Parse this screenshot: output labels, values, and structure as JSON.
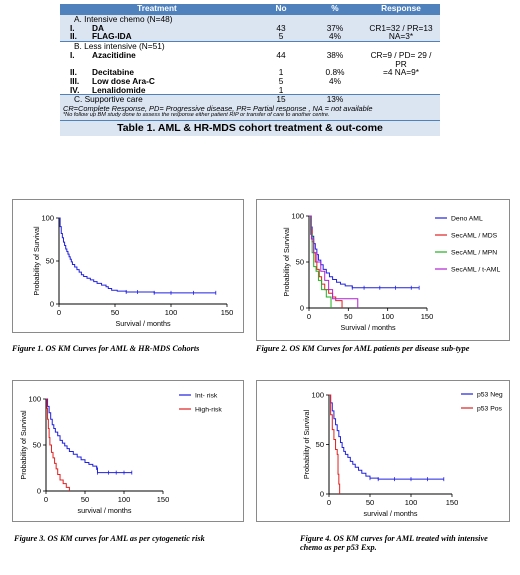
{
  "table": {
    "headers": [
      "Treatment",
      "No",
      "%",
      "Response"
    ],
    "intensive": {
      "section_label": "A.  Intensive chemo (N=48)",
      "rows": [
        {
          "roman": "I.",
          "name": "DA",
          "no": "43",
          "pct": "37%"
        },
        {
          "roman": "II.",
          "name": "FLAG-IDA",
          "no": "5",
          "pct": "4%"
        }
      ],
      "response_1": "CR1=32 / PR=13",
      "response_2": "NA=3*"
    },
    "less_intensive": {
      "section_label": "B.  Less intensive (N=51)",
      "rows": [
        {
          "roman": "I.",
          "name": "Azacitidine",
          "no": "44",
          "pct": "38%"
        },
        {
          "roman": "II.",
          "name": "Decitabine",
          "no": "1",
          "pct": "0.8%"
        },
        {
          "roman": "III.",
          "name": "Low dose Ara-C",
          "no": "5",
          "pct": "4%"
        },
        {
          "roman": "IV.",
          "name": "Lenalidomide",
          "no": "1",
          "pct": ""
        }
      ],
      "response_1": "CR=9 / PD= 29 / PR",
      "response_2": "=4 NA=9*"
    },
    "supportive": {
      "label": "C.  Supportive care",
      "no": "15",
      "pct": "13%"
    },
    "footnote_1": "CR=Complete Response, PD= Progressive disease, PR= Partial response  , NA = not available",
    "footnote_2": "*No follow up BM study done to assess  the response either patient RIP or transfer of care to another centre.",
    "caption": "Table 1. AML & HR-MDS cohort treatment & out-come"
  },
  "colors": {
    "header": "#4f81bd",
    "band": "#dbe5f1",
    "blue": "#2020e0",
    "red": "#e02020",
    "green": "#20b020",
    "purple": "#b020d0"
  },
  "figures": [
    {
      "caption": "Figure 1.  OS KM Curves for AML & HR-MDS Cohorts",
      "chart_data": {
        "type": "line",
        "ylabel": "Probability of Survival",
        "xlabel": "Survival / months",
        "x_ticks": [
          0,
          50,
          100,
          150
        ],
        "y_ticks": [
          0,
          50,
          100
        ],
        "xlim": [
          0,
          150
        ],
        "ylim": [
          0,
          100
        ],
        "series": [
          {
            "color": "#2020e0",
            "points": [
              [
                0,
                100
              ],
              [
                1,
                90
              ],
              [
                2,
                82
              ],
              [
                3,
                77
              ],
              [
                4,
                72
              ],
              [
                5,
                68
              ],
              [
                6,
                64
              ],
              [
                7,
                61
              ],
              [
                8,
                58
              ],
              [
                9,
                55
              ],
              [
                10,
                52
              ],
              [
                11,
                49
              ],
              [
                12,
                46
              ],
              [
                14,
                43
              ],
              [
                16,
                40
              ],
              [
                18,
                37
              ],
              [
                20,
                34
              ],
              [
                22,
                32
              ],
              [
                25,
                30
              ],
              [
                28,
                28
              ],
              [
                31,
                26
              ],
              [
                34,
                24
              ],
              [
                38,
                22
              ],
              [
                42,
                20
              ],
              [
                44,
                18
              ],
              [
                47,
                16
              ],
              [
                52,
                15
              ],
              [
                60,
                14
              ],
              [
                70,
                14
              ],
              [
                85,
                13
              ],
              [
                100,
                13
              ],
              [
                120,
                13
              ],
              [
                140,
                13
              ]
            ]
          }
        ]
      }
    },
    {
      "caption": "Figure 2. OS KM Curves for AML patients per disease sub-type",
      "chart_data": {
        "type": "line",
        "ylabel": "Probability of Survival",
        "xlabel": "Survival / months",
        "x_ticks": [
          0,
          50,
          100,
          150
        ],
        "y_ticks": [
          0,
          50,
          100
        ],
        "xlim": [
          0,
          150
        ],
        "ylim": [
          0,
          100
        ],
        "legend": "right",
        "series": [
          {
            "name": "Deno AML",
            "color": "#2020e0",
            "points": [
              [
                0,
                100
              ],
              [
                2,
                88
              ],
              [
                4,
                78
              ],
              [
                6,
                70
              ],
              [
                8,
                64
              ],
              [
                10,
                58
              ],
              [
                12,
                52
              ],
              [
                15,
                47
              ],
              [
                18,
                42
              ],
              [
                22,
                38
              ],
              [
                26,
                34
              ],
              [
                30,
                31
              ],
              [
                35,
                28
              ],
              [
                40,
                26
              ],
              [
                46,
                24
              ],
              [
                55,
                22
              ],
              [
                70,
                22
              ],
              [
                90,
                22
              ],
              [
                110,
                22
              ],
              [
                130,
                22
              ],
              [
                140,
                22
              ]
            ]
          },
          {
            "name": "SecAML / MDS",
            "color": "#e02020",
            "points": [
              [
                0,
                100
              ],
              [
                2,
                85
              ],
              [
                4,
                72
              ],
              [
                6,
                60
              ],
              [
                8,
                50
              ],
              [
                10,
                42
              ],
              [
                13,
                34
              ],
              [
                16,
                26
              ],
              [
                20,
                20
              ],
              [
                25,
                16
              ],
              [
                30,
                12
              ],
              [
                34,
                8
              ],
              [
                40,
                8
              ],
              [
                42,
                0
              ]
            ]
          },
          {
            "name": "SecAML / MPN",
            "color": "#20b020",
            "points": [
              [
                0,
                100
              ],
              [
                2,
                80
              ],
              [
                4,
                60
              ],
              [
                6,
                45
              ],
              [
                9,
                40
              ],
              [
                12,
                30
              ],
              [
                16,
                20
              ],
              [
                22,
                12
              ],
              [
                28,
                0
              ]
            ]
          },
          {
            "name": "SecAML / t-AML",
            "color": "#b020d0",
            "points": [
              [
                0,
                100
              ],
              [
                3,
                75
              ],
              [
                6,
                60
              ],
              [
                10,
                50
              ],
              [
                15,
                40
              ],
              [
                20,
                30
              ],
              [
                25,
                20
              ],
              [
                30,
                10
              ],
              [
                60,
                10
              ],
              [
                62,
                0
              ]
            ]
          }
        ]
      }
    },
    {
      "caption": "Figure 3. OS KM curves for AML as per cytogenetic risk",
      "chart_data": {
        "type": "line",
        "ylabel": "Probability of Survival",
        "xlabel": "survival / months",
        "x_ticks": [
          0,
          50,
          100,
          150
        ],
        "y_ticks": [
          0,
          50,
          100
        ],
        "xlim": [
          0,
          150
        ],
        "ylim": [
          0,
          100
        ],
        "legend": "top-right",
        "series": [
          {
            "name": "Int- risk",
            "color": "#2020e0",
            "points": [
              [
                0,
                100
              ],
              [
                2,
                92
              ],
              [
                4,
                85
              ],
              [
                6,
                78
              ],
              [
                8,
                72
              ],
              [
                10,
                68
              ],
              [
                12,
                64
              ],
              [
                15,
                60
              ],
              [
                18,
                55
              ],
              [
                21,
                52
              ],
              [
                24,
                49
              ],
              [
                27,
                46
              ],
              [
                30,
                43
              ],
              [
                35,
                40
              ],
              [
                40,
                37
              ],
              [
                45,
                34
              ],
              [
                50,
                31
              ],
              [
                55,
                29
              ],
              [
                60,
                27
              ],
              [
                65,
                25
              ],
              [
                66,
                20
              ],
              [
                80,
                20
              ],
              [
                90,
                20
              ],
              [
                100,
                20
              ],
              [
                110,
                20
              ]
            ]
          },
          {
            "name": "High-risk",
            "color": "#e02020",
            "points": [
              [
                0,
                100
              ],
              [
                1,
                90
              ],
              [
                2,
                78
              ],
              [
                3,
                68
              ],
              [
                4,
                58
              ],
              [
                5,
                50
              ],
              [
                7,
                42
              ],
              [
                9,
                36
              ],
              [
                11,
                30
              ],
              [
                13,
                24
              ],
              [
                15,
                18
              ],
              [
                18,
                12
              ],
              [
                22,
                8
              ],
              [
                26,
                4
              ],
              [
                30,
                0
              ]
            ]
          }
        ]
      }
    },
    {
      "caption": "Figure 4. OS KM curves for AML treated with intensive chemo as per p53 Exp.",
      "chart_data": {
        "type": "line",
        "ylabel": "Probability of Survival",
        "xlabel": "survival / months",
        "x_ticks": [
          0,
          50,
          100,
          150
        ],
        "y_ticks": [
          0,
          50,
          100
        ],
        "xlim": [
          0,
          150
        ],
        "ylim": [
          0,
          100
        ],
        "legend": "top-right",
        "series": [
          {
            "name": "p53 Neg",
            "color": "#2020e0",
            "points": [
              [
                0,
                100
              ],
              [
                2,
                92
              ],
              [
                4,
                84
              ],
              [
                6,
                76
              ],
              [
                8,
                70
              ],
              [
                10,
                64
              ],
              [
                12,
                58
              ],
              [
                14,
                52
              ],
              [
                16,
                47
              ],
              [
                18,
                43
              ],
              [
                20,
                40
              ],
              [
                23,
                37
              ],
              [
                26,
                33
              ],
              [
                29,
                30
              ],
              [
                32,
                27
              ],
              [
                36,
                24
              ],
              [
                40,
                21
              ],
              [
                45,
                18
              ],
              [
                50,
                16
              ],
              [
                60,
                15
              ],
              [
                80,
                15
              ],
              [
                100,
                15
              ],
              [
                120,
                15
              ],
              [
                140,
                15
              ]
            ]
          },
          {
            "name": "p53 Pos",
            "color": "#e02020",
            "points": [
              [
                0,
                100
              ],
              [
                2,
                80
              ],
              [
                4,
                65
              ],
              [
                6,
                55
              ],
              [
                8,
                45
              ],
              [
                10,
                40
              ],
              [
                11,
                20
              ],
              [
                12,
                10
              ],
              [
                13,
                0
              ]
            ]
          }
        ]
      }
    }
  ]
}
